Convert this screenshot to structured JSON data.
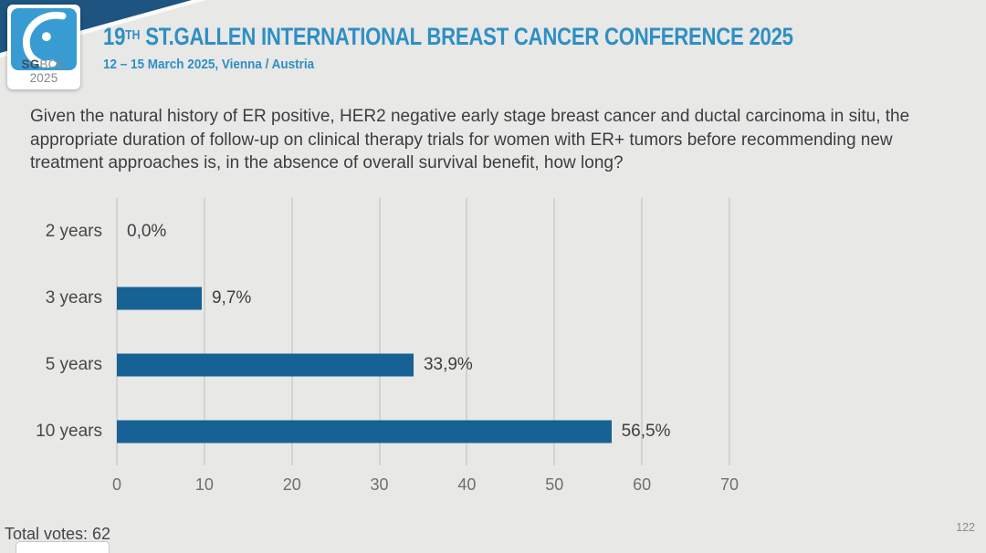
{
  "header": {
    "logo": {
      "text_bold": "SG",
      "text_rest": "BCC 2025"
    },
    "title_number": "19",
    "title_sup": "TH",
    "title_rest": " ST.GALLEN INTERNATIONAL BREAST CANCER CONFERENCE 2025",
    "subtitle": "12 – 15 March 2025, Vienna / Austria"
  },
  "question": "Given the natural history of ER positive, HER2 negative early stage breast cancer and ductal carcinoma in situ, the appropriate duration of follow-up on clinical therapy trials for women with ER+ tumors before recommending new treatment approaches is, in the absence of overall survival benefit, how long?",
  "chart_data": {
    "type": "bar",
    "orientation": "horizontal",
    "categories": [
      "2 years",
      "3 years",
      "5 years",
      "10 years"
    ],
    "values": [
      0.0,
      9.7,
      33.9,
      56.5
    ],
    "value_labels": [
      "0,0%",
      "9,7%",
      "33,9%",
      "56,5%"
    ],
    "x_ticks": [
      0,
      10,
      20,
      30,
      40,
      50,
      60,
      70
    ],
    "xlim": [
      0,
      70
    ],
    "grid": true,
    "legend": "none",
    "bar_color": "#176294"
  },
  "footer": {
    "total_votes": "Total votes: 62",
    "page_number": "122"
  },
  "colors": {
    "accent_blue": "#2e8fc4",
    "navy_band": "#1d5480",
    "logo_blue": "#389cd3",
    "bar_blue": "#176294",
    "background": "#e8e8e7"
  }
}
